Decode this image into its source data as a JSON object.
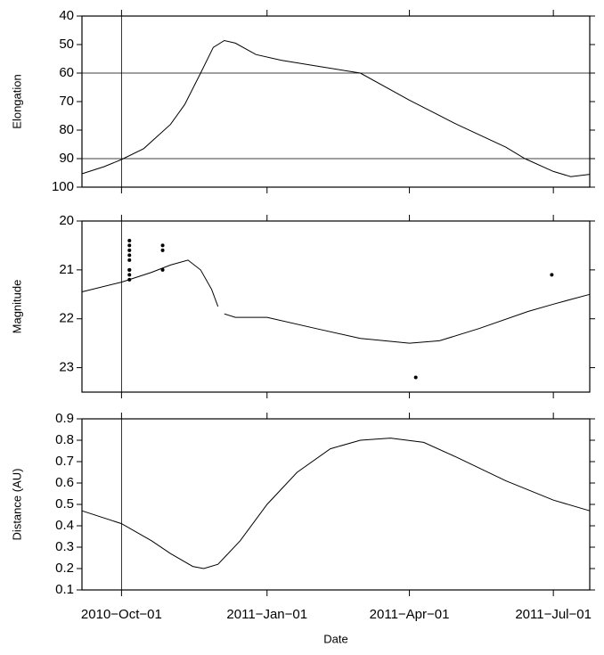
{
  "chart_data": [
    {
      "type": "line",
      "ylabel": "Elongation",
      "y_reversed": true,
      "xlim": [
        "2010-09-06",
        "2011-07-24"
      ],
      "xticks": [
        "2010-10-01",
        "2011-01-01",
        "2011-04-01",
        "2011-07-01"
      ],
      "ylim": [
        40,
        100
      ],
      "yticks": [
        40,
        50,
        60,
        70,
        80,
        90,
        100
      ],
      "hlines": [
        60,
        90
      ],
      "vlines": [
        "2010-10-01"
      ],
      "series": [
        {
          "style": "line",
          "color": "#000000",
          "x": [
            "2010-09-06",
            "2010-09-20",
            "2010-10-01",
            "2010-10-15",
            "2010-11-01",
            "2010-11-10",
            "2010-11-20",
            "2010-11-28",
            "2010-12-05",
            "2010-12-12",
            "2010-12-25",
            "2011-01-10",
            "2011-02-01",
            "2011-03-01",
            "2011-04-01",
            "2011-05-01",
            "2011-06-01",
            "2011-06-13",
            "2011-07-01",
            "2011-07-12",
            "2011-07-24"
          ],
          "values": [
            95.3,
            92.8,
            90.3,
            86.5,
            78,
            71,
            60,
            51,
            48.6,
            49.5,
            53.5,
            55.5,
            57.5,
            60,
            69.5,
            78,
            86,
            90,
            94.5,
            96.3,
            95.5
          ]
        }
      ]
    },
    {
      "type": "line",
      "ylabel": "Magnitude",
      "y_reversed": true,
      "xlim": [
        "2010-09-06",
        "2011-07-24"
      ],
      "xticks": [
        "2010-10-01",
        "2011-01-01",
        "2011-04-01",
        "2011-07-01"
      ],
      "ylim": [
        20,
        23.5
      ],
      "yticks": [
        20,
        21,
        22,
        23
      ],
      "vlines": [
        "2010-10-01"
      ],
      "series": [
        {
          "style": "line",
          "color": "#000000",
          "x": [
            "2010-09-06",
            "2010-10-01",
            "2010-10-20",
            "2010-11-01",
            "2010-11-12",
            "2010-11-20",
            "2010-11-27",
            "2010-12-01",
            "2010-12-03",
            "2010-12-05",
            "2010-12-12",
            "2011-01-01",
            "2011-02-01",
            "2011-03-01",
            "2011-04-01",
            "2011-04-20",
            "2011-05-15",
            "2011-06-15",
            "2011-07-01",
            "2011-07-24"
          ],
          "values": [
            21.45,
            21.25,
            21.05,
            20.9,
            20.8,
            21.0,
            21.4,
            21.75,
            null,
            21.9,
            21.97,
            21.97,
            22.2,
            22.4,
            22.5,
            22.45,
            22.2,
            21.85,
            21.7,
            21.5
          ]
        },
        {
          "style": "markers",
          "color": "#000000",
          "x": [
            "2010-10-06",
            "2010-10-06",
            "2010-10-06",
            "2010-10-06",
            "2010-10-06",
            "2010-10-06",
            "2010-10-06",
            "2010-10-06",
            "2010-10-06",
            "2010-10-27",
            "2010-10-27",
            "2010-10-27",
            "2011-04-05",
            "2011-06-30"
          ],
          "values": [
            20.4,
            20.5,
            20.6,
            20.7,
            20.8,
            21.0,
            21.0,
            21.1,
            21.2,
            20.5,
            20.6,
            21.0,
            23.2,
            21.1
          ]
        }
      ]
    },
    {
      "type": "line",
      "ylabel": "Distance (AU)",
      "xlabel": "Date",
      "xlim": [
        "2010-09-06",
        "2011-07-24"
      ],
      "xticks": [
        {
          "value": "2010-10-01",
          "label": "2010−Oct−01"
        },
        {
          "value": "2011-01-01",
          "label": "2011−Jan−01"
        },
        {
          "value": "2011-04-01",
          "label": "2011−Apr−01"
        },
        {
          "value": "2011-07-01",
          "label": "2011−Jul−01"
        }
      ],
      "ylim": [
        0.1,
        0.9
      ],
      "yticks": [
        0.1,
        0.2,
        0.3,
        0.4,
        0.5,
        0.6,
        0.7,
        0.8,
        0.9
      ],
      "vlines": [
        "2010-10-01"
      ],
      "series": [
        {
          "style": "line",
          "color": "#000000",
          "x": [
            "2010-09-06",
            "2010-10-01",
            "2010-10-20",
            "2010-11-01",
            "2010-11-15",
            "2010-11-22",
            "2010-12-01",
            "2010-12-15",
            "2011-01-01",
            "2011-01-20",
            "2011-02-10",
            "2011-03-01",
            "2011-03-20",
            "2011-04-10",
            "2011-05-01",
            "2011-06-01",
            "2011-07-01",
            "2011-07-24"
          ],
          "values": [
            0.47,
            0.41,
            0.33,
            0.27,
            0.21,
            0.2,
            0.22,
            0.33,
            0.5,
            0.65,
            0.76,
            0.8,
            0.81,
            0.79,
            0.72,
            0.61,
            0.52,
            0.47
          ]
        }
      ]
    }
  ]
}
